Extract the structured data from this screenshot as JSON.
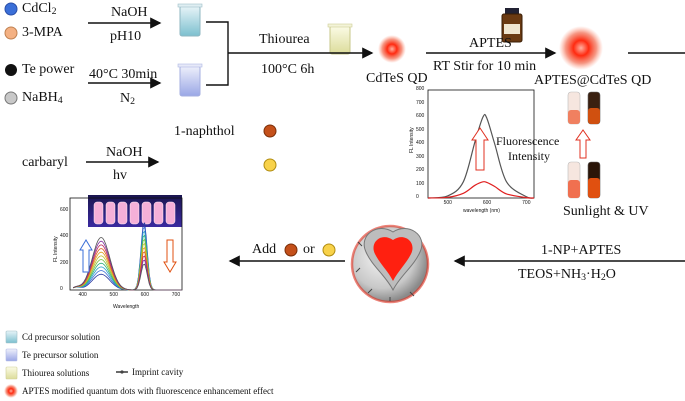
{
  "reagents": {
    "cdcl2": "CdCl",
    "cdcl2_sub": "2",
    "mpa": "3-MPA",
    "naoh1": "NaOH",
    "ph": "pH10",
    "te": "Te power",
    "nabh4": "NaBH",
    "nabh4_sub": "4",
    "cond1": "40°C 30min",
    "n2": "N",
    "n2_sub": "2",
    "naphthol": "1-naphthol",
    "carbaryl": "carbaryl",
    "naoh2": "NaOH",
    "hv": "hv"
  },
  "steps": {
    "thiourea": "Thiourea",
    "cond2": "100°C 6h",
    "cdte": "CdTeS QD",
    "aptes": "APTES",
    "stir": "RT Stir for 10 min",
    "aptes_cdte": "APTES@CdTeS QD",
    "fluor": "Fluorescence",
    "intensity": "Intensity",
    "sunuv": "Sunlight & UV",
    "np_aptes": "1-NP+APTES",
    "teos": "TEOS+NH",
    "teos_sub1": "3",
    "teos_mid": "·H",
    "teos_sub2": "2",
    "teos_end": "O",
    "add": "Add",
    "or": "or"
  },
  "chart1": {
    "ylabel": "FL Intensity",
    "xlabel": "wavelength (nm)",
    "yticks": [
      "0",
      "100",
      "200",
      "300",
      "400",
      "500",
      "600",
      "700",
      "800"
    ],
    "xticks": [
      "500",
      "600",
      "700"
    ]
  },
  "chart2": {
    "ylabel": "FL Intensity",
    "xlabel": "Wavelength",
    "yticks": [
      "0",
      "200",
      "400",
      "600"
    ],
    "xticks": [
      "400",
      "500",
      "600",
      "700"
    ]
  },
  "legend": {
    "cd": "Cd precursor solution",
    "te": "Te precursor solution",
    "thio": "Thiourea solutions",
    "cavity": "Imprint cavity",
    "qd": "APTES modified quantum dots with fluorescence enhancement effect"
  },
  "colors": {
    "cd_blue": "#3a6fd8",
    "mpa_peach": "#f4b183",
    "naphthol": "#c4501a",
    "carbaryl": "#f8d24a",
    "qd_red": "#f0301e"
  },
  "chart_data": [
    {
      "type": "line",
      "ylabel": "FL Intensity",
      "xlabel": "wavelength (nm)",
      "xlim": [
        450,
        720
      ],
      "ylim": [
        0,
        800
      ],
      "series": [
        {
          "x": [
            450,
            500,
            540,
            570,
            590,
            600,
            620,
            650,
            700,
            720
          ],
          "values": [
            0,
            15,
            120,
            420,
            600,
            590,
            400,
            120,
            10,
            0
          ]
        },
        {
          "x": [
            450,
            500,
            540,
            570,
            590,
            600,
            620,
            650,
            700,
            720
          ],
          "values": [
            0,
            5,
            35,
            95,
            120,
            115,
            85,
            30,
            3,
            0
          ]
        }
      ]
    }
  ]
}
